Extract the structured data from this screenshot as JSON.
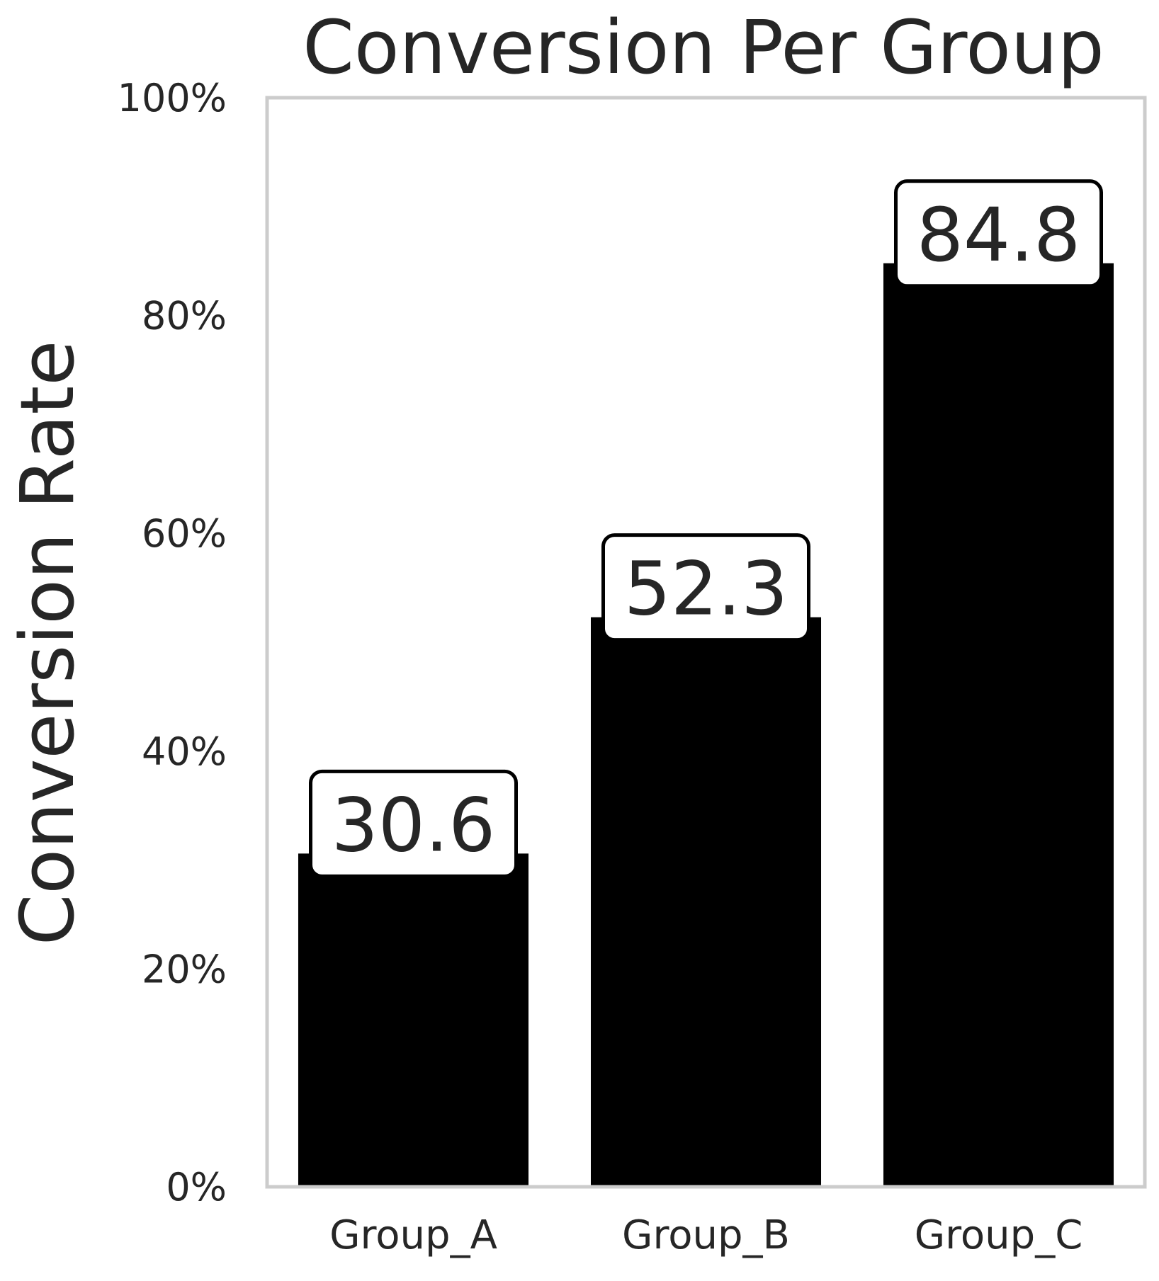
{
  "chart_data": {
    "type": "bar",
    "title": "Conversion Per Group",
    "xlabel": "",
    "ylabel": "Conversion Rate",
    "categories": [
      "Group_A",
      "Group_B",
      "Group_C"
    ],
    "values": [
      30.6,
      52.3,
      84.8
    ],
    "data_labels": [
      "30.6",
      "52.3",
      "84.8"
    ],
    "ylim": [
      0,
      100
    ],
    "yticks": [
      0,
      20,
      40,
      60,
      80,
      100
    ],
    "ytick_labels": [
      "0%",
      "20%",
      "40%",
      "60%",
      "80%",
      "100%"
    ],
    "grid": false,
    "legend": false,
    "colors": {
      "bar": "#000000",
      "frame": "#cccccc",
      "text": "#262626",
      "label_box_fill": "#ffffff",
      "label_box_stroke": "#000000"
    }
  }
}
